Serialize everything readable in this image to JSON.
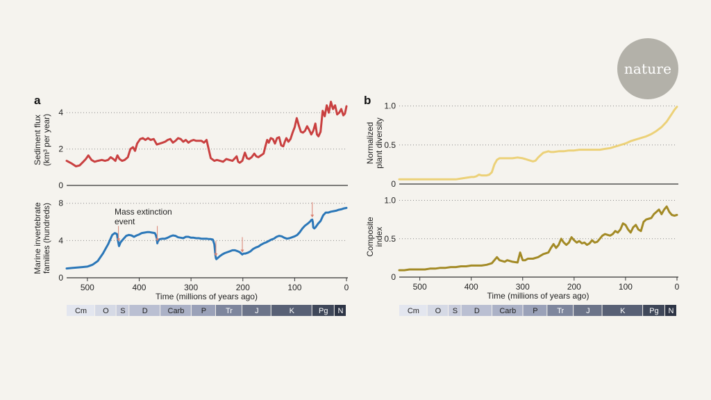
{
  "brand": {
    "logo_text": "nature",
    "logo_color": "#b3b1a9"
  },
  "colors": {
    "sediment": "#c94040",
    "marine": "#2b77b8",
    "plant": "#ecd178",
    "composite": "#a38a25",
    "arrow": "#d98070",
    "axis": "#333333",
    "grid": "#888888"
  },
  "time_scale": {
    "periods": [
      {
        "label": "Cm",
        "start": 541,
        "end": 485,
        "color": "#e3e6ef"
      },
      {
        "label": "O",
        "start": 485,
        "end": 444,
        "color": "#d5d9e5"
      },
      {
        "label": "S",
        "start": 444,
        "end": 419,
        "color": "#c8ccdc"
      },
      {
        "label": "D",
        "start": 419,
        "end": 359,
        "color": "#babfd2"
      },
      {
        "label": "Carb",
        "start": 359,
        "end": 299,
        "color": "#abb1c6"
      },
      {
        "label": "P",
        "start": 299,
        "end": 252,
        "color": "#9aa1b8"
      },
      {
        "label": "Tr",
        "start": 252,
        "end": 201,
        "color": "#7e869d"
      },
      {
        "label": "J",
        "start": 201,
        "end": 145,
        "color": "#6c7489"
      },
      {
        "label": "K",
        "start": 145,
        "end": 66,
        "color": "#586075"
      },
      {
        "label": "Pg",
        "start": 66,
        "end": 23,
        "color": "#3f4759"
      },
      {
        "label": "N",
        "start": 23,
        "end": 0,
        "color": "#2d3445"
      }
    ]
  },
  "chart_data": [
    {
      "panel": "a",
      "type": "line",
      "ylabel": "Sediment flux (km³ per year)",
      "ylabel_lines": [
        "Sediment flux",
        "(km³ per year)"
      ],
      "ylim": [
        0,
        5
      ],
      "yticks": [
        0,
        2,
        4
      ],
      "xlim": [
        540,
        0
      ],
      "xticks": [
        500,
        400,
        300,
        200,
        100,
        0
      ],
      "xlabel": "",
      "grid": "horizontal dotted",
      "series": [
        {
          "key": "sediment",
          "x": [
            540,
            530,
            522,
            515,
            508,
            503,
            498,
            492,
            486,
            480,
            472,
            466,
            460,
            455,
            450,
            446,
            442,
            438,
            433,
            428,
            422,
            417,
            412,
            408,
            404,
            398,
            393,
            388,
            383,
            378,
            372,
            366,
            360,
            355,
            350,
            345,
            340,
            335,
            330,
            325,
            320,
            315,
            310,
            305,
            300,
            295,
            290,
            285,
            280,
            275,
            270,
            262,
            255,
            250,
            244,
            238,
            232,
            226,
            220,
            215,
            212,
            209,
            206,
            201,
            196,
            192,
            188,
            183,
            178,
            174,
            170,
            165,
            160,
            156,
            153,
            150,
            146,
            142,
            138,
            134,
            130,
            126,
            122,
            119,
            116,
            112,
            108,
            104,
            100,
            96,
            92,
            88,
            84,
            80,
            76,
            72,
            68,
            64,
            60,
            57,
            54,
            50,
            46,
            42,
            38,
            34,
            30,
            26,
            22,
            18,
            14,
            10,
            6,
            3,
            0
          ],
          "y": [
            1.35,
            1.2,
            1.05,
            1.1,
            1.3,
            1.45,
            1.65,
            1.4,
            1.3,
            1.35,
            1.4,
            1.35,
            1.4,
            1.55,
            1.45,
            1.35,
            1.65,
            1.45,
            1.35,
            1.4,
            1.55,
            2.0,
            2.1,
            1.9,
            2.3,
            2.55,
            2.6,
            2.5,
            2.6,
            2.5,
            2.55,
            2.25,
            2.3,
            2.35,
            2.4,
            2.5,
            2.55,
            2.35,
            2.45,
            2.6,
            2.55,
            2.4,
            2.5,
            2.35,
            2.45,
            2.5,
            2.45,
            2.45,
            2.45,
            2.35,
            2.5,
            1.5,
            1.35,
            1.4,
            1.35,
            1.3,
            1.45,
            1.4,
            1.35,
            1.5,
            1.6,
            1.3,
            1.25,
            1.35,
            1.8,
            1.5,
            1.45,
            1.55,
            1.75,
            1.6,
            1.55,
            1.65,
            1.75,
            2.2,
            2.5,
            2.35,
            2.6,
            2.55,
            2.3,
            2.6,
            2.65,
            2.2,
            2.15,
            2.4,
            2.6,
            2.4,
            2.55,
            2.9,
            3.2,
            3.7,
            3.3,
            2.95,
            2.9,
            3.0,
            3.25,
            3.05,
            2.8,
            3.0,
            3.4,
            2.8,
            2.7,
            2.95,
            4.1,
            3.8,
            4.4,
            4.0,
            4.6,
            4.2,
            4.4,
            3.9,
            4.0,
            4.2,
            3.85,
            3.95,
            4.35
          ]
        }
      ]
    },
    {
      "panel": "a",
      "type": "line",
      "ylabel": "Marine invertebrate families (hundreds)",
      "ylabel_lines": [
        "Marine invertebrate",
        "families (hundreds)"
      ],
      "ylim": [
        0,
        8.5
      ],
      "yticks": [
        0,
        4,
        8
      ],
      "xlim": [
        540,
        0
      ],
      "xticks": [
        500,
        400,
        300,
        200,
        100,
        0
      ],
      "xlabel": "Time (millions of years ago)",
      "grid": "horizontal dotted",
      "annotations": [
        {
          "text_lines": [
            "Mass extinction",
            "event"
          ]
        }
      ],
      "extinction_events": [
        440,
        365,
        252,
        201,
        66
      ],
      "series": [
        {
          "key": "marine",
          "x": [
            540,
            530,
            520,
            510,
            500,
            490,
            480,
            470,
            460,
            452,
            447,
            443,
            441,
            439,
            436,
            430,
            425,
            420,
            415,
            410,
            405,
            400,
            395,
            390,
            385,
            380,
            375,
            370,
            368,
            366,
            365,
            364,
            362,
            360,
            355,
            350,
            345,
            340,
            335,
            330,
            325,
            320,
            315,
            310,
            305,
            300,
            295,
            290,
            285,
            280,
            275,
            270,
            265,
            262,
            258,
            255,
            253,
            252,
            251,
            250,
            248,
            245,
            240,
            235,
            230,
            225,
            220,
            215,
            210,
            206,
            203,
            201,
            200,
            198,
            195,
            190,
            185,
            180,
            175,
            170,
            165,
            160,
            155,
            150,
            145,
            140,
            135,
            130,
            125,
            120,
            115,
            110,
            105,
            100,
            95,
            90,
            85,
            80,
            75,
            70,
            68,
            66,
            65,
            64,
            62,
            60,
            55,
            50,
            45,
            40,
            35,
            30,
            25,
            20,
            15,
            10,
            5,
            0
          ],
          "y": [
            1.0,
            1.05,
            1.1,
            1.15,
            1.2,
            1.4,
            1.8,
            2.6,
            3.6,
            4.6,
            4.8,
            4.7,
            4.0,
            3.4,
            3.8,
            4.2,
            4.5,
            4.6,
            4.55,
            4.4,
            4.55,
            4.65,
            4.8,
            4.85,
            4.9,
            4.9,
            4.85,
            4.8,
            4.6,
            4.2,
            3.7,
            3.9,
            4.05,
            4.15,
            4.2,
            4.2,
            4.3,
            4.45,
            4.55,
            4.5,
            4.35,
            4.3,
            4.25,
            4.4,
            4.4,
            4.3,
            4.3,
            4.25,
            4.25,
            4.2,
            4.2,
            4.2,
            4.15,
            4.15,
            4.1,
            3.6,
            2.5,
            2.1,
            2.0,
            2.05,
            2.15,
            2.3,
            2.5,
            2.65,
            2.75,
            2.85,
            2.95,
            2.95,
            2.85,
            2.75,
            2.6,
            2.5,
            2.55,
            2.6,
            2.6,
            2.7,
            2.85,
            3.1,
            3.25,
            3.35,
            3.55,
            3.7,
            3.8,
            3.95,
            4.1,
            4.2,
            4.4,
            4.5,
            4.45,
            4.3,
            4.2,
            4.25,
            4.35,
            4.45,
            4.6,
            4.9,
            5.3,
            5.6,
            5.8,
            6.05,
            6.2,
            6.25,
            6.0,
            5.4,
            5.3,
            5.4,
            5.8,
            6.1,
            6.7,
            7.0,
            7.0,
            7.1,
            7.15,
            7.2,
            7.3,
            7.35,
            7.45,
            7.5
          ]
        }
      ]
    },
    {
      "panel": "b",
      "type": "line",
      "ylabel": "Normalized plant diversity",
      "ylabel_lines": [
        "Normalized",
        "plant diversity"
      ],
      "ylim": [
        0,
        1.05
      ],
      "yticks": [
        0,
        0.5,
        1.0
      ],
      "ytick_labels": [
        "0",
        "0.5",
        "1.0"
      ],
      "xlim": [
        540,
        0
      ],
      "xticks": [
        500,
        400,
        300,
        200,
        100,
        0
      ],
      "xlabel": "",
      "grid": "horizontal dotted",
      "series": [
        {
          "key": "plant",
          "x": [
            540,
            520,
            500,
            480,
            460,
            440,
            430,
            420,
            410,
            400,
            395,
            390,
            385,
            380,
            375,
            370,
            365,
            360,
            355,
            350,
            345,
            340,
            330,
            320,
            310,
            300,
            295,
            290,
            285,
            280,
            275,
            270,
            265,
            260,
            255,
            250,
            245,
            240,
            230,
            220,
            210,
            200,
            190,
            180,
            170,
            160,
            150,
            140,
            130,
            120,
            110,
            100,
            90,
            80,
            70,
            60,
            50,
            40,
            30,
            20,
            10,
            5,
            0
          ],
          "y": [
            0.06,
            0.06,
            0.06,
            0.06,
            0.06,
            0.06,
            0.06,
            0.07,
            0.08,
            0.09,
            0.09,
            0.1,
            0.12,
            0.11,
            0.11,
            0.11,
            0.12,
            0.15,
            0.25,
            0.31,
            0.33,
            0.33,
            0.33,
            0.33,
            0.34,
            0.33,
            0.32,
            0.31,
            0.3,
            0.29,
            0.3,
            0.34,
            0.37,
            0.4,
            0.41,
            0.42,
            0.41,
            0.41,
            0.42,
            0.42,
            0.43,
            0.43,
            0.44,
            0.44,
            0.44,
            0.44,
            0.44,
            0.45,
            0.46,
            0.48,
            0.5,
            0.52,
            0.55,
            0.57,
            0.59,
            0.61,
            0.64,
            0.68,
            0.73,
            0.8,
            0.9,
            0.95,
            0.99
          ]
        }
      ]
    },
    {
      "panel": "b",
      "type": "line",
      "ylabel": "Composite index",
      "ylabel_lines": [
        "Composite",
        "index"
      ],
      "ylim": [
        0,
        1.05
      ],
      "yticks": [
        0,
        0.5,
        1.0
      ],
      "ytick_labels": [
        "0",
        "0.5",
        "1.0"
      ],
      "xlim": [
        540,
        0
      ],
      "xticks": [
        500,
        400,
        300,
        200,
        100,
        0
      ],
      "xlabel": "Time (millions of years ago)",
      "grid": "horizontal dotted",
      "series": [
        {
          "key": "composite",
          "x": [
            540,
            530,
            520,
            510,
            500,
            490,
            480,
            470,
            460,
            450,
            440,
            430,
            420,
            410,
            400,
            390,
            380,
            370,
            360,
            350,
            345,
            340,
            335,
            330,
            320,
            310,
            305,
            300,
            295,
            290,
            280,
            270,
            260,
            250,
            245,
            240,
            235,
            230,
            225,
            220,
            215,
            210,
            205,
            200,
            195,
            190,
            185,
            180,
            175,
            170,
            165,
            160,
            155,
            150,
            145,
            140,
            135,
            130,
            125,
            120,
            115,
            110,
            105,
            100,
            95,
            90,
            85,
            80,
            75,
            70,
            65,
            60,
            55,
            50,
            45,
            40,
            35,
            30,
            25,
            20,
            15,
            10,
            5,
            0
          ],
          "y": [
            0.09,
            0.09,
            0.1,
            0.1,
            0.1,
            0.1,
            0.11,
            0.11,
            0.12,
            0.12,
            0.13,
            0.13,
            0.14,
            0.14,
            0.15,
            0.15,
            0.15,
            0.16,
            0.18,
            0.26,
            0.22,
            0.21,
            0.2,
            0.22,
            0.2,
            0.19,
            0.32,
            0.22,
            0.22,
            0.24,
            0.24,
            0.26,
            0.3,
            0.32,
            0.38,
            0.43,
            0.38,
            0.42,
            0.5,
            0.45,
            0.42,
            0.45,
            0.52,
            0.48,
            0.45,
            0.47,
            0.44,
            0.45,
            0.42,
            0.44,
            0.48,
            0.45,
            0.46,
            0.5,
            0.54,
            0.56,
            0.55,
            0.54,
            0.56,
            0.6,
            0.58,
            0.62,
            0.7,
            0.68,
            0.62,
            0.58,
            0.65,
            0.68,
            0.62,
            0.6,
            0.72,
            0.75,
            0.76,
            0.77,
            0.82,
            0.85,
            0.88,
            0.82,
            0.88,
            0.92,
            0.85,
            0.81,
            0.8,
            0.81
          ]
        }
      ]
    }
  ],
  "panels": {
    "a": {
      "letter": "a",
      "xlabel": "Time (millions of years ago)"
    },
    "b": {
      "letter": "b",
      "xlabel": "Time (millions of years ago)"
    }
  }
}
